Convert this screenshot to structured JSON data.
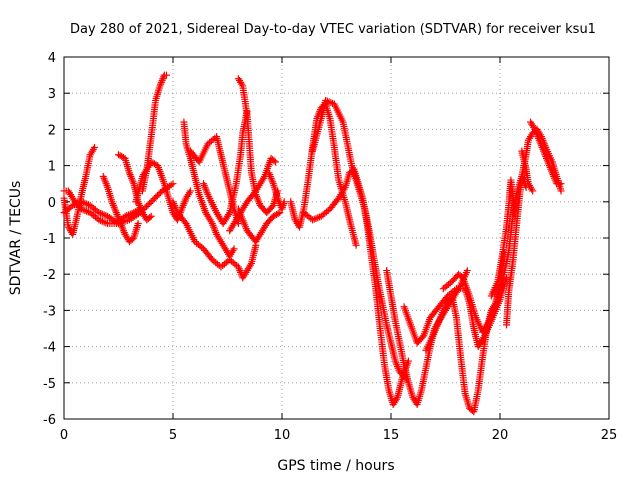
{
  "chart_data": {
    "type": "scatter",
    "title": "Day 280 of 2021, Sidereal Day-to-day VTEC variation (SDTVAR) for receiver ksu1",
    "xlabel": "GPS time / hours",
    "ylabel": "SDTVAR / TECUs",
    "xlim": [
      0,
      25
    ],
    "ylim": [
      -6,
      4
    ],
    "xticks": [
      "0",
      "5",
      "10",
      "15",
      "20",
      "25"
    ],
    "yticks": [
      "-6",
      "-5",
      "-4",
      "-3",
      "-2",
      "-1",
      "0",
      "1",
      "2",
      "3",
      "4"
    ],
    "grid": true,
    "marker": "+",
    "series_color": "#ff0000",
    "series": [
      {
        "values": [
          [
            0.0,
            0.1
          ],
          [
            0.2,
            -0.7
          ],
          [
            0.4,
            -0.9
          ],
          [
            0.6,
            -0.4
          ],
          [
            0.8,
            0.2
          ],
          [
            1.0,
            0.7
          ],
          [
            1.2,
            1.3
          ],
          [
            1.4,
            1.5
          ]
        ]
      },
      {
        "values": [
          [
            0.0,
            0.3
          ],
          [
            0.2,
            0.3
          ],
          [
            0.5,
            0.0
          ],
          [
            0.8,
            -0.2
          ],
          [
            1.2,
            -0.3
          ],
          [
            1.6,
            -0.5
          ],
          [
            2.0,
            -0.6
          ],
          [
            2.4,
            -0.6
          ],
          [
            2.8,
            -0.4
          ],
          [
            3.2,
            -0.3
          ],
          [
            3.5,
            -0.2
          ]
        ]
      },
      {
        "values": [
          [
            0.0,
            -0.3
          ],
          [
            0.4,
            -0.1
          ],
          [
            0.8,
            0.0
          ],
          [
            1.2,
            -0.1
          ],
          [
            1.6,
            -0.3
          ],
          [
            2.0,
            -0.4
          ],
          [
            2.5,
            -0.6
          ],
          [
            3.0,
            -0.5
          ],
          [
            3.5,
            -0.3
          ],
          [
            4.0,
            0.0
          ],
          [
            4.5,
            0.3
          ],
          [
            5.0,
            0.5
          ]
        ]
      },
      {
        "values": [
          [
            1.8,
            0.7
          ],
          [
            2.0,
            0.4
          ],
          [
            2.2,
            0.0
          ],
          [
            2.4,
            -0.3
          ],
          [
            2.6,
            -0.6
          ],
          [
            2.8,
            -0.9
          ],
          [
            3.0,
            -1.1
          ],
          [
            3.2,
            -1.0
          ],
          [
            3.4,
            -0.6
          ]
        ]
      },
      {
        "values": [
          [
            2.5,
            1.3
          ],
          [
            2.8,
            1.2
          ],
          [
            3.0,
            0.8
          ],
          [
            3.2,
            0.5
          ],
          [
            3.4,
            0.0
          ],
          [
            3.6,
            -0.3
          ],
          [
            3.8,
            -0.5
          ],
          [
            4.0,
            -0.4
          ]
        ]
      },
      {
        "values": [
          [
            3.6,
            0.3
          ],
          [
            3.8,
            0.9
          ],
          [
            4.0,
            1.8
          ],
          [
            4.2,
            2.8
          ],
          [
            4.4,
            3.2
          ],
          [
            4.6,
            3.5
          ],
          [
            4.7,
            3.5
          ]
        ]
      },
      {
        "values": [
          [
            3.3,
            0.0
          ],
          [
            3.6,
            0.7
          ],
          [
            4.0,
            1.1
          ],
          [
            4.3,
            1.0
          ],
          [
            4.6,
            0.5
          ],
          [
            4.8,
            0.1
          ],
          [
            5.0,
            -0.3
          ],
          [
            5.2,
            -0.5
          ],
          [
            5.4,
            -0.2
          ],
          [
            5.6,
            0.1
          ],
          [
            5.8,
            0.3
          ]
        ]
      },
      {
        "values": [
          [
            5.0,
            0.0
          ],
          [
            5.2,
            -0.3
          ],
          [
            5.6,
            -0.6
          ],
          [
            6.0,
            -1.1
          ],
          [
            6.4,
            -1.3
          ],
          [
            6.8,
            -1.6
          ],
          [
            7.2,
            -1.8
          ],
          [
            7.6,
            -1.6
          ],
          [
            8.0,
            -1.8
          ],
          [
            8.2,
            -2.1
          ],
          [
            8.6,
            -1.7
          ],
          [
            8.8,
            -1.2
          ]
        ]
      },
      {
        "values": [
          [
            5.5,
            2.2
          ],
          [
            5.6,
            1.6
          ],
          [
            5.8,
            1.2
          ],
          [
            6.0,
            0.7
          ],
          [
            6.2,
            0.2
          ],
          [
            6.5,
            -0.3
          ],
          [
            6.8,
            -0.6
          ],
          [
            7.0,
            -0.9
          ],
          [
            7.3,
            -1.2
          ],
          [
            7.6,
            -1.5
          ],
          [
            7.8,
            -1.3
          ]
        ]
      },
      {
        "values": [
          [
            5.8,
            1.4
          ],
          [
            6.2,
            1.1
          ],
          [
            6.6,
            1.6
          ],
          [
            7.0,
            1.8
          ],
          [
            7.2,
            1.3
          ],
          [
            7.4,
            0.8
          ],
          [
            7.6,
            0.3
          ],
          [
            7.8,
            -0.2
          ],
          [
            8.0,
            -0.6
          ]
        ]
      },
      {
        "values": [
          [
            6.4,
            0.5
          ],
          [
            6.6,
            0.2
          ],
          [
            7.0,
            -0.3
          ],
          [
            7.3,
            -0.6
          ],
          [
            7.6,
            -0.3
          ],
          [
            7.9,
            0.5
          ],
          [
            8.1,
            1.3
          ],
          [
            8.2,
            1.9
          ],
          [
            8.4,
            2.5
          ]
        ]
      },
      {
        "values": [
          [
            7.6,
            -0.8
          ],
          [
            8.0,
            -0.4
          ],
          [
            8.4,
            0.0
          ],
          [
            8.8,
            0.3
          ],
          [
            9.2,
            0.7
          ],
          [
            9.5,
            1.2
          ],
          [
            9.7,
            1.1
          ]
        ]
      },
      {
        "values": [
          [
            8.0,
            -0.2
          ],
          [
            8.4,
            -0.8
          ],
          [
            8.8,
            -1.1
          ],
          [
            9.0,
            -0.9
          ],
          [
            9.3,
            -0.6
          ],
          [
            9.6,
            -0.4
          ],
          [
            9.9,
            -0.3
          ]
        ]
      },
      {
        "values": [
          [
            8.0,
            3.4
          ],
          [
            8.2,
            3.2
          ],
          [
            8.4,
            2.4
          ],
          [
            8.5,
            1.6
          ],
          [
            8.6,
            0.8
          ],
          [
            8.8,
            0.2
          ],
          [
            9.0,
            -0.1
          ],
          [
            9.3,
            -0.3
          ],
          [
            9.6,
            -0.1
          ],
          [
            9.8,
            0.3
          ]
        ]
      },
      {
        "values": [
          [
            9.4,
            0.8
          ],
          [
            9.6,
            0.5
          ],
          [
            9.8,
            0.1
          ],
          [
            10.0,
            -0.2
          ],
          [
            10.1,
            0.0
          ]
        ]
      },
      {
        "values": [
          [
            10.4,
            0.0
          ],
          [
            10.6,
            -0.5
          ],
          [
            10.8,
            -0.7
          ],
          [
            11.0,
            -0.2
          ],
          [
            11.2,
            0.6
          ],
          [
            11.4,
            1.5
          ],
          [
            11.6,
            2.3
          ],
          [
            11.8,
            2.6
          ],
          [
            12.0,
            2.7
          ],
          [
            12.2,
            2.3
          ],
          [
            12.4,
            1.5
          ],
          [
            12.6,
            0.6
          ],
          [
            12.9,
            0.0
          ],
          [
            13.1,
            -0.5
          ],
          [
            13.4,
            -1.2
          ]
        ]
      },
      {
        "values": [
          [
            11.4,
            1.4
          ],
          [
            11.8,
            2.3
          ],
          [
            12.0,
            2.8
          ],
          [
            12.4,
            2.7
          ],
          [
            12.8,
            2.2
          ],
          [
            13.0,
            1.6
          ],
          [
            13.2,
            1.0
          ],
          [
            13.5,
            0.4
          ],
          [
            13.8,
            -0.2
          ],
          [
            14.0,
            -0.8
          ],
          [
            14.2,
            -1.5
          ],
          [
            14.4,
            -2.2
          ],
          [
            14.6,
            -2.8
          ],
          [
            14.8,
            -3.4
          ],
          [
            15.0,
            -3.9
          ],
          [
            15.2,
            -4.4
          ],
          [
            15.4,
            -4.7
          ],
          [
            15.7,
            -4.9
          ]
        ]
      },
      {
        "values": [
          [
            11.0,
            -0.3
          ],
          [
            11.4,
            -0.5
          ],
          [
            11.8,
            -0.4
          ],
          [
            12.2,
            -0.2
          ],
          [
            12.6,
            0.1
          ],
          [
            12.9,
            0.4
          ],
          [
            13.1,
            0.8
          ],
          [
            13.3,
            0.9
          ],
          [
            13.5,
            0.5
          ],
          [
            13.7,
            0.1
          ],
          [
            13.9,
            -0.6
          ],
          [
            14.1,
            -1.5
          ],
          [
            14.3,
            -2.4
          ],
          [
            14.5,
            -3.5
          ],
          [
            14.7,
            -4.5
          ],
          [
            14.9,
            -5.2
          ],
          [
            15.1,
            -5.6
          ],
          [
            15.3,
            -5.4
          ],
          [
            15.5,
            -4.9
          ],
          [
            15.8,
            -4.4
          ]
        ]
      },
      {
        "values": [
          [
            14.8,
            -1.9
          ],
          [
            15.0,
            -2.6
          ],
          [
            15.2,
            -3.3
          ],
          [
            15.4,
            -3.9
          ],
          [
            15.6,
            -4.5
          ],
          [
            15.8,
            -5.0
          ],
          [
            16.0,
            -5.4
          ],
          [
            16.2,
            -5.6
          ],
          [
            16.4,
            -5.2
          ],
          [
            16.6,
            -4.6
          ],
          [
            16.8,
            -4.0
          ],
          [
            17.0,
            -3.5
          ],
          [
            17.4,
            -3.1
          ],
          [
            17.8,
            -2.7
          ],
          [
            18.2,
            -2.3
          ],
          [
            18.5,
            -1.9
          ]
        ]
      },
      {
        "values": [
          [
            15.6,
            -2.9
          ],
          [
            15.9,
            -3.4
          ],
          [
            16.2,
            -3.9
          ],
          [
            16.5,
            -3.7
          ],
          [
            16.8,
            -3.2
          ],
          [
            17.2,
            -2.9
          ],
          [
            17.6,
            -2.6
          ],
          [
            18.0,
            -2.4
          ],
          [
            18.4,
            -2.4
          ],
          [
            18.6,
            -2.8
          ],
          [
            18.8,
            -3.5
          ],
          [
            19.0,
            -4.0
          ],
          [
            19.3,
            -3.7
          ],
          [
            19.6,
            -3.3
          ],
          [
            20.0,
            -2.7
          ],
          [
            20.3,
            -2.1
          ]
        ]
      },
      {
        "values": [
          [
            16.6,
            -4.1
          ],
          [
            17.0,
            -3.6
          ],
          [
            17.4,
            -3.0
          ],
          [
            17.8,
            -2.6
          ],
          [
            18.0,
            -3.2
          ],
          [
            18.2,
            -4.3
          ],
          [
            18.4,
            -5.3
          ],
          [
            18.6,
            -5.7
          ],
          [
            18.8,
            -5.8
          ],
          [
            19.0,
            -5.2
          ],
          [
            19.2,
            -4.3
          ],
          [
            19.4,
            -3.5
          ],
          [
            19.6,
            -3.0
          ],
          [
            19.8,
            -2.8
          ],
          [
            20.0,
            -2.3
          ],
          [
            20.2,
            -1.4
          ]
        ]
      },
      {
        "values": [
          [
            17.4,
            -2.4
          ],
          [
            17.8,
            -2.2
          ],
          [
            18.1,
            -2.0
          ],
          [
            18.3,
            -2.1
          ],
          [
            18.6,
            -2.6
          ],
          [
            18.9,
            -3.2
          ],
          [
            19.2,
            -3.6
          ],
          [
            19.5,
            -3.3
          ],
          [
            19.8,
            -2.8
          ],
          [
            20.1,
            -2.2
          ],
          [
            20.4,
            -1.4
          ],
          [
            20.6,
            -0.3
          ],
          [
            20.8,
            0.3
          ],
          [
            21.0,
            0.7
          ],
          [
            21.2,
            0.4
          ]
        ]
      },
      {
        "values": [
          [
            19.6,
            -2.6
          ],
          [
            19.9,
            -2.2
          ],
          [
            20.1,
            -1.5
          ],
          [
            20.3,
            -0.7
          ],
          [
            20.4,
            -0.1
          ],
          [
            20.5,
            0.6
          ],
          [
            20.6,
            0.1
          ],
          [
            20.7,
            -0.4
          ]
        ]
      },
      {
        "values": [
          [
            20.3,
            -3.4
          ],
          [
            20.4,
            -2.5
          ],
          [
            20.6,
            -1.6
          ],
          [
            20.8,
            -0.4
          ],
          [
            21.0,
            0.7
          ],
          [
            21.2,
            1.3
          ],
          [
            21.3,
            1.7
          ],
          [
            21.5,
            1.9
          ],
          [
            21.7,
            2.0
          ],
          [
            21.9,
            1.8
          ],
          [
            22.1,
            1.5
          ],
          [
            22.4,
            1.1
          ],
          [
            22.6,
            0.7
          ],
          [
            22.8,
            0.3
          ]
        ]
      },
      {
        "values": [
          [
            21.4,
            2.2
          ],
          [
            21.6,
            2.0
          ],
          [
            21.8,
            1.7
          ],
          [
            22.0,
            1.4
          ],
          [
            22.2,
            1.1
          ],
          [
            22.4,
            0.8
          ],
          [
            22.6,
            0.5
          ],
          [
            22.8,
            0.5
          ]
        ]
      },
      {
        "values": [
          [
            21.0,
            1.4
          ],
          [
            21.2,
            0.9
          ],
          [
            21.3,
            0.5
          ],
          [
            21.5,
            0.3
          ]
        ]
      }
    ]
  }
}
